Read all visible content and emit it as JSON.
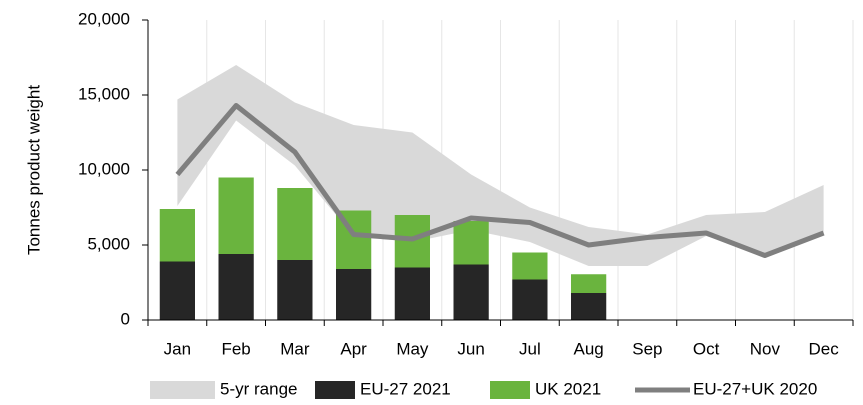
{
  "chart_data": {
    "type": "combo",
    "y_label": "Tonnes product weight",
    "categories": [
      "Jan",
      "Feb",
      "Mar",
      "Apr",
      "May",
      "Jun",
      "Jul",
      "Aug",
      "Sep",
      "Oct",
      "Nov",
      "Dec"
    ],
    "ylim": [
      0,
      20000
    ],
    "yticks": [
      {
        "value": 0,
        "label": "0"
      },
      {
        "value": 5000,
        "label": "5,000"
      },
      {
        "value": 10000,
        "label": "10,000"
      },
      {
        "value": 15000,
        "label": "15,000"
      },
      {
        "value": 20000,
        "label": "20,000"
      }
    ],
    "grid": true,
    "legend": "bottom",
    "series": [
      {
        "name": "5-yr range",
        "type": "area",
        "color": "#d9d9d9",
        "low": [
          7600,
          13300,
          10300,
          5600,
          5200,
          6000,
          5200,
          3600,
          3600,
          5600,
          4300,
          5800
        ],
        "high": [
          14700,
          17000,
          14500,
          13000,
          12500,
          9700,
          7500,
          6200,
          5700,
          7000,
          7200,
          9000
        ]
      },
      {
        "name": "EU-27 2021",
        "type": "bar",
        "color": "#262626",
        "values": [
          3900,
          4400,
          4000,
          3400,
          3500,
          3700,
          2700,
          1800,
          null,
          null,
          null,
          null
        ]
      },
      {
        "name": "UK 2021",
        "type": "bar",
        "color": "#6ab43e",
        "values": [
          3500,
          5100,
          4800,
          3900,
          3500,
          2900,
          1800,
          1250,
          null,
          null,
          null,
          null
        ]
      },
      {
        "name": "EU-27+UK 2020",
        "type": "line",
        "color": "#7f7f7f",
        "values": [
          9700,
          14300,
          11200,
          5700,
          5400,
          6800,
          6500,
          5000,
          5500,
          5800,
          4300,
          5800
        ]
      }
    ]
  }
}
